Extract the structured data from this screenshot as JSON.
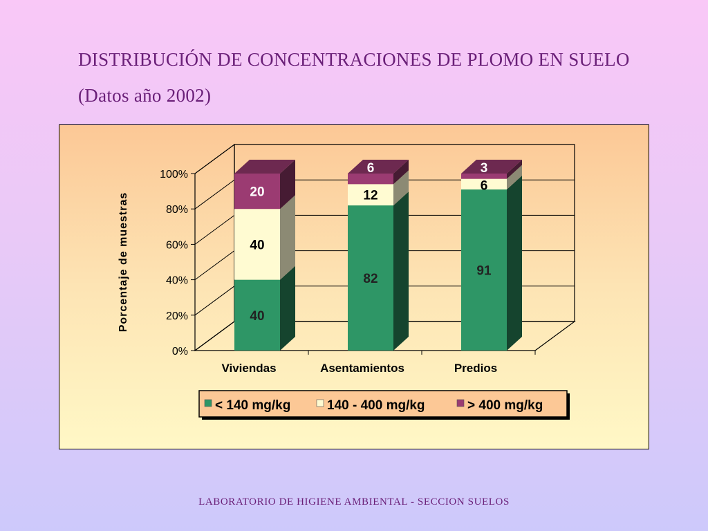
{
  "slide": {
    "title_line1": "DISTRIBUCIÓN DE CONCENTRACIONES DE PLOMO EN SUELO",
    "title_line2": "(Datos año 2002)",
    "footer": "LABORATORIO DE HIGIENE AMBIENTAL - SECCION SUELOS"
  },
  "chart_data": {
    "type": "bar",
    "stacked": true,
    "percent": true,
    "three_d": true,
    "categories": [
      "Viviendas",
      "Asentamientos",
      "Predios"
    ],
    "series": [
      {
        "name": "< 140 mg/kg",
        "values": [
          40,
          82,
          91
        ],
        "color": "#2e9666"
      },
      {
        "name": "140 - 400 mg/kg",
        "values": [
          40,
          12,
          6
        ],
        "color": "#fffbd2"
      },
      {
        "name": ">  400 mg/kg",
        "values": [
          20,
          6,
          3
        ],
        "color": "#9b3b72"
      }
    ],
    "ylabel": "Porcentaje de muestras",
    "yticks": [
      "0%",
      "20%",
      "40%",
      "60%",
      "80%",
      "100%"
    ],
    "ylim": [
      0,
      100
    ],
    "grid": true,
    "legend_position": "bottom"
  }
}
